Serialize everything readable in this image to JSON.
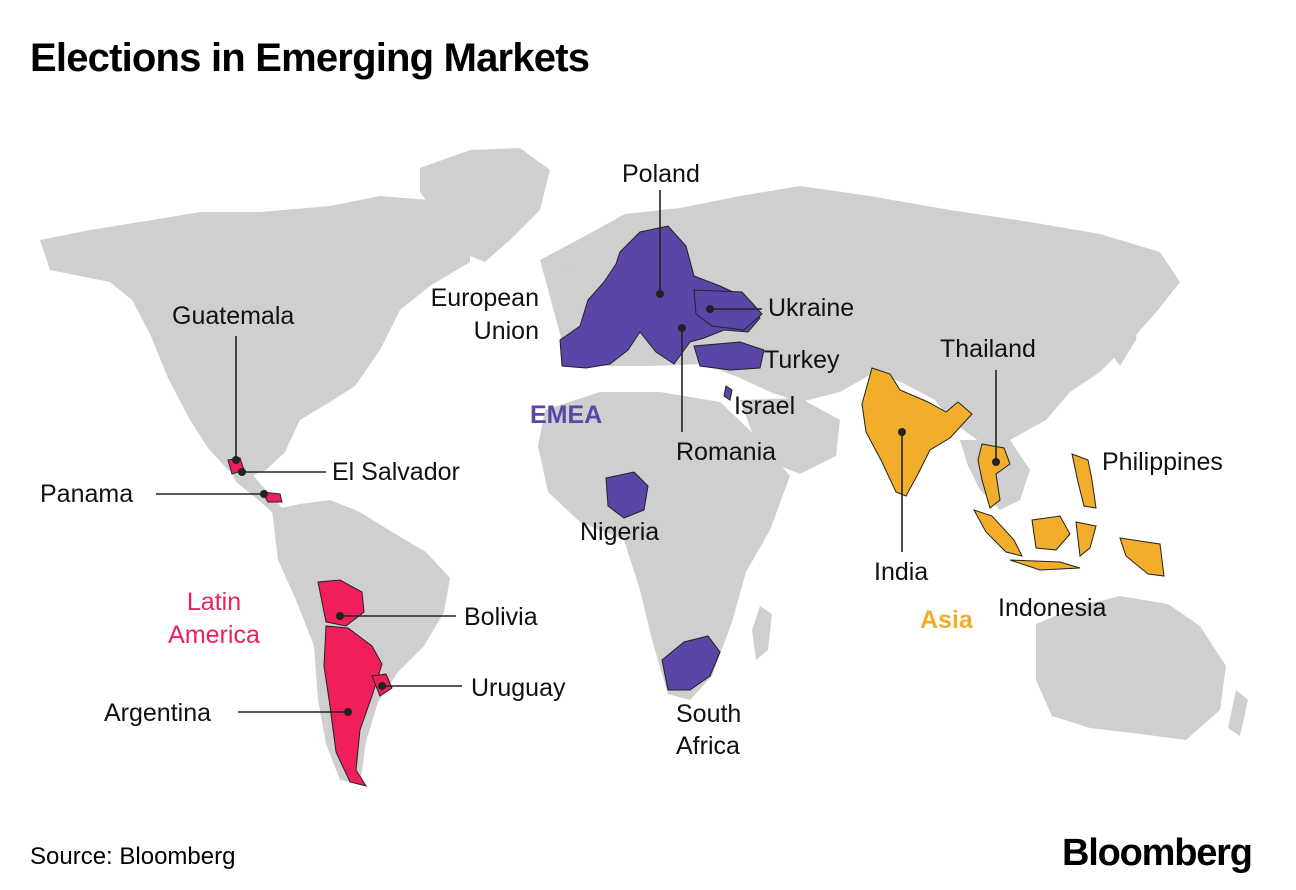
{
  "title": "Elections in Emerging Markets",
  "source": "Source: Bloomberg",
  "brand": "Bloomberg",
  "colors": {
    "land": "#cfcfcf",
    "emea": "#5b45a6",
    "latin_america": "#f01f5c",
    "asia": "#f2ad2a",
    "background": "#ffffff"
  },
  "regions": {
    "emea": "EMEA",
    "latin_america_line1": "Latin",
    "latin_america_line2": "America",
    "asia": "Asia"
  },
  "labels": {
    "poland": "Poland",
    "eu_line1": "European",
    "eu_line2": "Union",
    "ukraine": "Ukraine",
    "turkey": "Turkey",
    "israel": "Israel",
    "romania": "Romania",
    "nigeria": "Nigeria",
    "south_africa_line1": "South",
    "south_africa_line2": "Africa",
    "india": "India",
    "thailand": "Thailand",
    "philippines": "Philippines",
    "indonesia": "Indonesia",
    "guatemala": "Guatemala",
    "el_salvador": "El Salvador",
    "panama": "Panama",
    "bolivia": "Bolivia",
    "uruguay": "Uruguay",
    "argentina": "Argentina"
  }
}
